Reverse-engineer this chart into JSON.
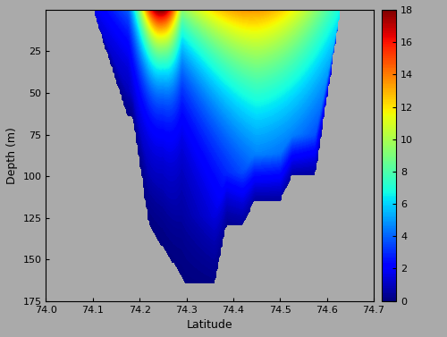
{
  "lat_min": 74.0,
  "lat_max": 74.7,
  "depth_min": 0,
  "depth_max": 175,
  "vmin": 0,
  "vmax": 18,
  "colorbar_ticks": [
    0,
    2,
    4,
    6,
    8,
    10,
    12,
    14,
    16,
    18
  ],
  "xlabel": "Latitude",
  "ylabel": "Depth (m)",
  "background_color": "#aaaaaa",
  "lat_ticks": [
    74.0,
    74.1,
    74.2,
    74.3,
    74.4,
    74.5,
    74.6,
    74.7
  ],
  "depth_ticks": [
    25,
    50,
    75,
    100,
    125,
    150,
    175
  ],
  "figsize": [
    5.0,
    3.77
  ],
  "dpi": 100
}
